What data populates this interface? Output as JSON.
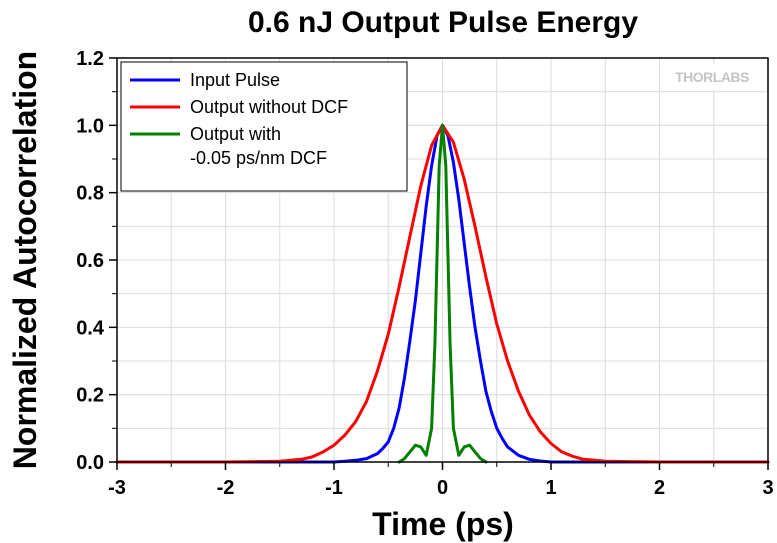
{
  "chart_data": {
    "type": "line",
    "title": "0.6 nJ Output Pulse Energy",
    "xlabel": "Time (ps)",
    "ylabel": "Normalized Autocorrelation",
    "xlim": [
      -3,
      3
    ],
    "ylim": [
      0,
      1.2
    ],
    "xticks": [
      -3,
      -2,
      -1,
      0,
      1,
      2,
      3
    ],
    "yticks": [
      "0.0",
      "0.2",
      "0.4",
      "0.6",
      "0.8",
      "1.0",
      "1.2"
    ],
    "grid": true,
    "legend_position": "top-left",
    "logo": "THORLABS",
    "series": [
      {
        "name": "Input Pulse",
        "color": "#0000ff",
        "x": [
          -3.0,
          -2.0,
          -1.5,
          -1.0,
          -0.9,
          -0.8,
          -0.7,
          -0.6,
          -0.55,
          -0.5,
          -0.45,
          -0.4,
          -0.35,
          -0.3,
          -0.25,
          -0.2,
          -0.15,
          -0.1,
          -0.05,
          0.0,
          0.05,
          0.1,
          0.15,
          0.2,
          0.25,
          0.3,
          0.35,
          0.4,
          0.45,
          0.5,
          0.55,
          0.6,
          0.7,
          0.8,
          0.9,
          1.0,
          1.5,
          2.0,
          3.0
        ],
        "y": [
          0.0,
          0.0,
          0.0,
          0.0,
          0.002,
          0.005,
          0.01,
          0.025,
          0.04,
          0.06,
          0.1,
          0.16,
          0.25,
          0.36,
          0.48,
          0.62,
          0.76,
          0.88,
          0.97,
          1.0,
          0.97,
          0.89,
          0.78,
          0.65,
          0.52,
          0.4,
          0.3,
          0.21,
          0.15,
          0.1,
          0.07,
          0.045,
          0.02,
          0.008,
          0.003,
          0.0,
          0.0,
          0.0,
          0.0
        ]
      },
      {
        "name": "Output without DCF",
        "color": "#ff0000",
        "x": [
          -3.0,
          -2.0,
          -1.5,
          -1.3,
          -1.2,
          -1.1,
          -1.0,
          -0.9,
          -0.8,
          -0.7,
          -0.6,
          -0.5,
          -0.4,
          -0.3,
          -0.2,
          -0.1,
          0.0,
          0.1,
          0.2,
          0.3,
          0.4,
          0.5,
          0.6,
          0.7,
          0.8,
          0.9,
          1.0,
          1.1,
          1.2,
          1.3,
          1.5,
          2.0,
          3.0
        ],
        "y": [
          0.0,
          0.0,
          0.002,
          0.008,
          0.015,
          0.03,
          0.05,
          0.08,
          0.12,
          0.18,
          0.27,
          0.38,
          0.52,
          0.67,
          0.82,
          0.94,
          1.0,
          0.95,
          0.84,
          0.7,
          0.55,
          0.41,
          0.3,
          0.21,
          0.14,
          0.09,
          0.055,
          0.03,
          0.017,
          0.008,
          0.002,
          0.0,
          0.0
        ]
      },
      {
        "name": "Output with -0.05 ps/nm DCF",
        "color": "#008000",
        "x": [
          -0.4,
          -0.35,
          -0.3,
          -0.25,
          -0.2,
          -0.15,
          -0.1,
          -0.07,
          -0.05,
          -0.03,
          0.0,
          0.03,
          0.05,
          0.07,
          0.1,
          0.15,
          0.2,
          0.25,
          0.3,
          0.35,
          0.4
        ],
        "y": [
          0.0,
          0.01,
          0.03,
          0.05,
          0.045,
          0.02,
          0.1,
          0.35,
          0.62,
          0.88,
          1.0,
          0.88,
          0.62,
          0.35,
          0.1,
          0.02,
          0.045,
          0.05,
          0.03,
          0.01,
          0.0
        ]
      }
    ]
  },
  "legend": {
    "items": [
      {
        "lines": [
          "Input Pulse"
        ],
        "color": "#0000ff"
      },
      {
        "lines": [
          "Output without DCF"
        ],
        "color": "#ff0000"
      },
      {
        "lines": [
          "Output with",
          "-0.05 ps/nm DCF"
        ],
        "color": "#008000"
      }
    ]
  }
}
